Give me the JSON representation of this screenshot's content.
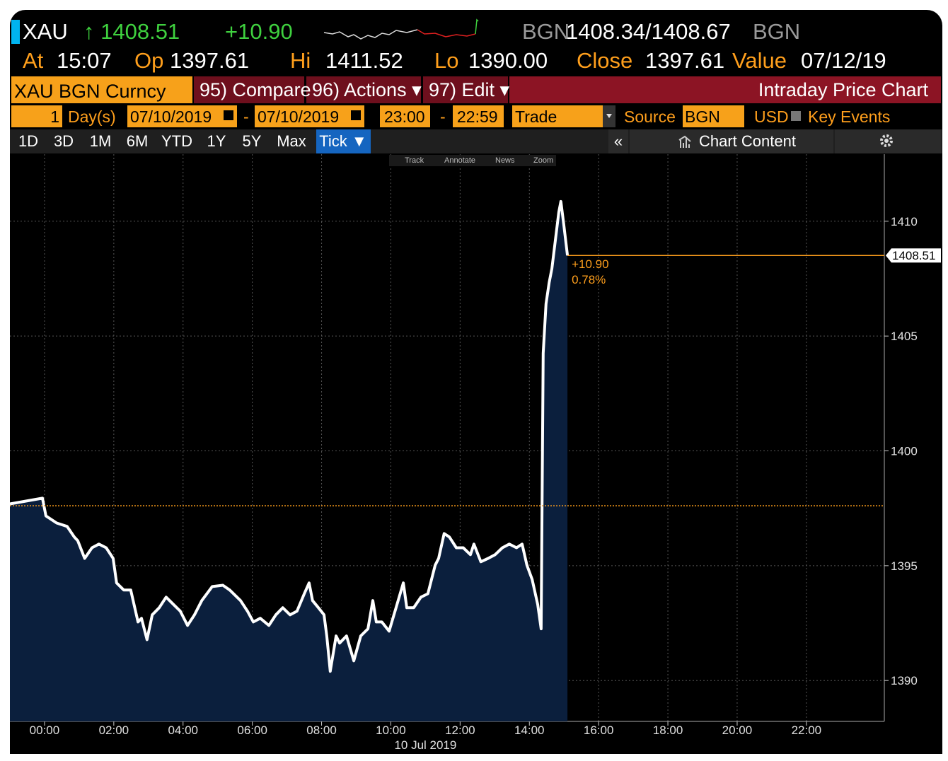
{
  "header": {
    "ticker": "XAU",
    "last": "↑ 1408.51",
    "change": "+10.90",
    "bid_source": "BGN",
    "bid_ask": "1408.34/1408.67",
    "ask_source": "BGN"
  },
  "quote": [
    {
      "label": "At",
      "value": "15:07"
    },
    {
      "label": "Op",
      "value": "1397.61"
    },
    {
      "label": "Hi",
      "value": "1411.52"
    },
    {
      "label": "Lo",
      "value": "1390.00"
    },
    {
      "label": "Close",
      "value": "1397.61"
    },
    {
      "label": "Value",
      "value": "07/12/19"
    }
  ],
  "toolbar": {
    "security": "XAU BGN Curncy",
    "buttons": [
      "95) Compare",
      "96) Actions ▾",
      "97) Edit ▾"
    ],
    "title": "Intraday Price Chart"
  },
  "settings": {
    "count": "1",
    "unit": "Day(s)",
    "start_date": "07/10/2019",
    "separator": "-",
    "end_date": "07/10/2019",
    "start_time": "23:00",
    "end_time": "22:59",
    "event": "Trade",
    "source_label": "Source",
    "source": "BGN",
    "currency": "USD",
    "key_events": "Key Events"
  },
  "periods": [
    "1D",
    "3D",
    "1M",
    "6M",
    "YTD",
    "1Y",
    "5Y",
    "Max",
    "Tick ▼"
  ],
  "panel": {
    "collapse": "«",
    "chart_content": "Chart Content"
  },
  "chart_tools": [
    "Track",
    "Annotate",
    "News",
    "Zoom"
  ],
  "chart_data": {
    "type": "area",
    "color": "#ffffff",
    "fill": "#0b1f3d",
    "grid": true,
    "x": [
      -1.0,
      -0.06,
      0.04,
      0.35,
      0.65,
      0.86,
      0.96,
      1.16,
      1.37,
      1.57,
      1.78,
      1.98,
      2.08,
      2.29,
      2.49,
      2.7,
      2.8,
      2.96,
      3.11,
      3.31,
      3.51,
      3.72,
      3.92,
      4.13,
      4.33,
      4.54,
      4.84,
      5.15,
      5.35,
      5.66,
      5.86,
      6.03,
      6.23,
      6.48,
      6.68,
      6.88,
      7.09,
      7.29,
      7.5,
      7.64,
      7.74,
      7.91,
      8.07,
      8.15,
      8.25,
      8.42,
      8.52,
      8.72,
      8.93,
      9.13,
      9.34,
      9.48,
      9.58,
      9.74,
      9.95,
      10.15,
      10.36,
      10.46,
      10.66,
      10.87,
      11.07,
      11.28,
      11.38,
      11.54,
      11.69,
      11.89,
      12.09,
      12.3,
      12.4,
      12.6,
      12.81,
      13.01,
      13.22,
      13.42,
      13.63,
      13.79,
      13.93,
      14.08,
      14.24,
      14.34,
      14.4,
      14.48,
      14.57,
      14.65,
      14.75,
      14.85,
      14.91,
      15.0,
      15.1
    ],
    "values": [
      1397.69,
      1397.94,
      1397.17,
      1396.86,
      1396.71,
      1396.25,
      1396.09,
      1395.32,
      1395.78,
      1395.94,
      1395.78,
      1395.32,
      1394.25,
      1393.94,
      1393.94,
      1392.55,
      1392.71,
      1391.78,
      1392.86,
      1393.17,
      1393.63,
      1393.32,
      1393.02,
      1392.4,
      1392.86,
      1393.48,
      1394.09,
      1394.15,
      1393.94,
      1393.48,
      1393.02,
      1392.55,
      1392.71,
      1392.4,
      1392.86,
      1393.17,
      1392.86,
      1393.02,
      1393.78,
      1394.25,
      1393.48,
      1393.17,
      1392.86,
      1391.94,
      1390.4,
      1391.94,
      1391.63,
      1391.94,
      1390.86,
      1391.94,
      1392.25,
      1393.48,
      1392.55,
      1392.55,
      1392.15,
      1393.17,
      1394.25,
      1393.17,
      1393.17,
      1393.63,
      1393.78,
      1395.02,
      1395.32,
      1396.4,
      1396.25,
      1395.78,
      1395.78,
      1395.48,
      1395.94,
      1395.17,
      1395.32,
      1395.48,
      1395.78,
      1395.94,
      1395.78,
      1395.94,
      1395.02,
      1394.4,
      1393.32,
      1392.25,
      1404.25,
      1406.4,
      1407.32,
      1407.94,
      1409.17,
      1410.4,
      1410.86,
      1409.78,
      1408.51
    ],
    "xlim": [
      -1,
      24.25
    ],
    "xticks": [
      {
        "value": 0,
        "label": "00:00"
      },
      {
        "value": 2,
        "label": "02:00"
      },
      {
        "value": 4,
        "label": "04:00"
      },
      {
        "value": 6,
        "label": "06:00"
      },
      {
        "value": 8,
        "label": "08:00"
      },
      {
        "value": 10,
        "label": "10:00"
      },
      {
        "value": 12,
        "label": "12:00"
      },
      {
        "value": 14,
        "label": "14:00"
      },
      {
        "value": 16,
        "label": "16:00"
      },
      {
        "value": 18,
        "label": "18:00"
      },
      {
        "value": 20,
        "label": "20:00"
      },
      {
        "value": 22,
        "label": "22:00"
      }
    ],
    "x_label": "10 Jul 2019",
    "ylim": [
      1388.22,
      1412.92
    ],
    "yticks": [
      1390,
      1395,
      1400,
      1405,
      1410
    ],
    "reference_line": 1397.61,
    "last_value": 1408.51,
    "annotations": [
      "+10.90",
      "0.78%"
    ]
  }
}
